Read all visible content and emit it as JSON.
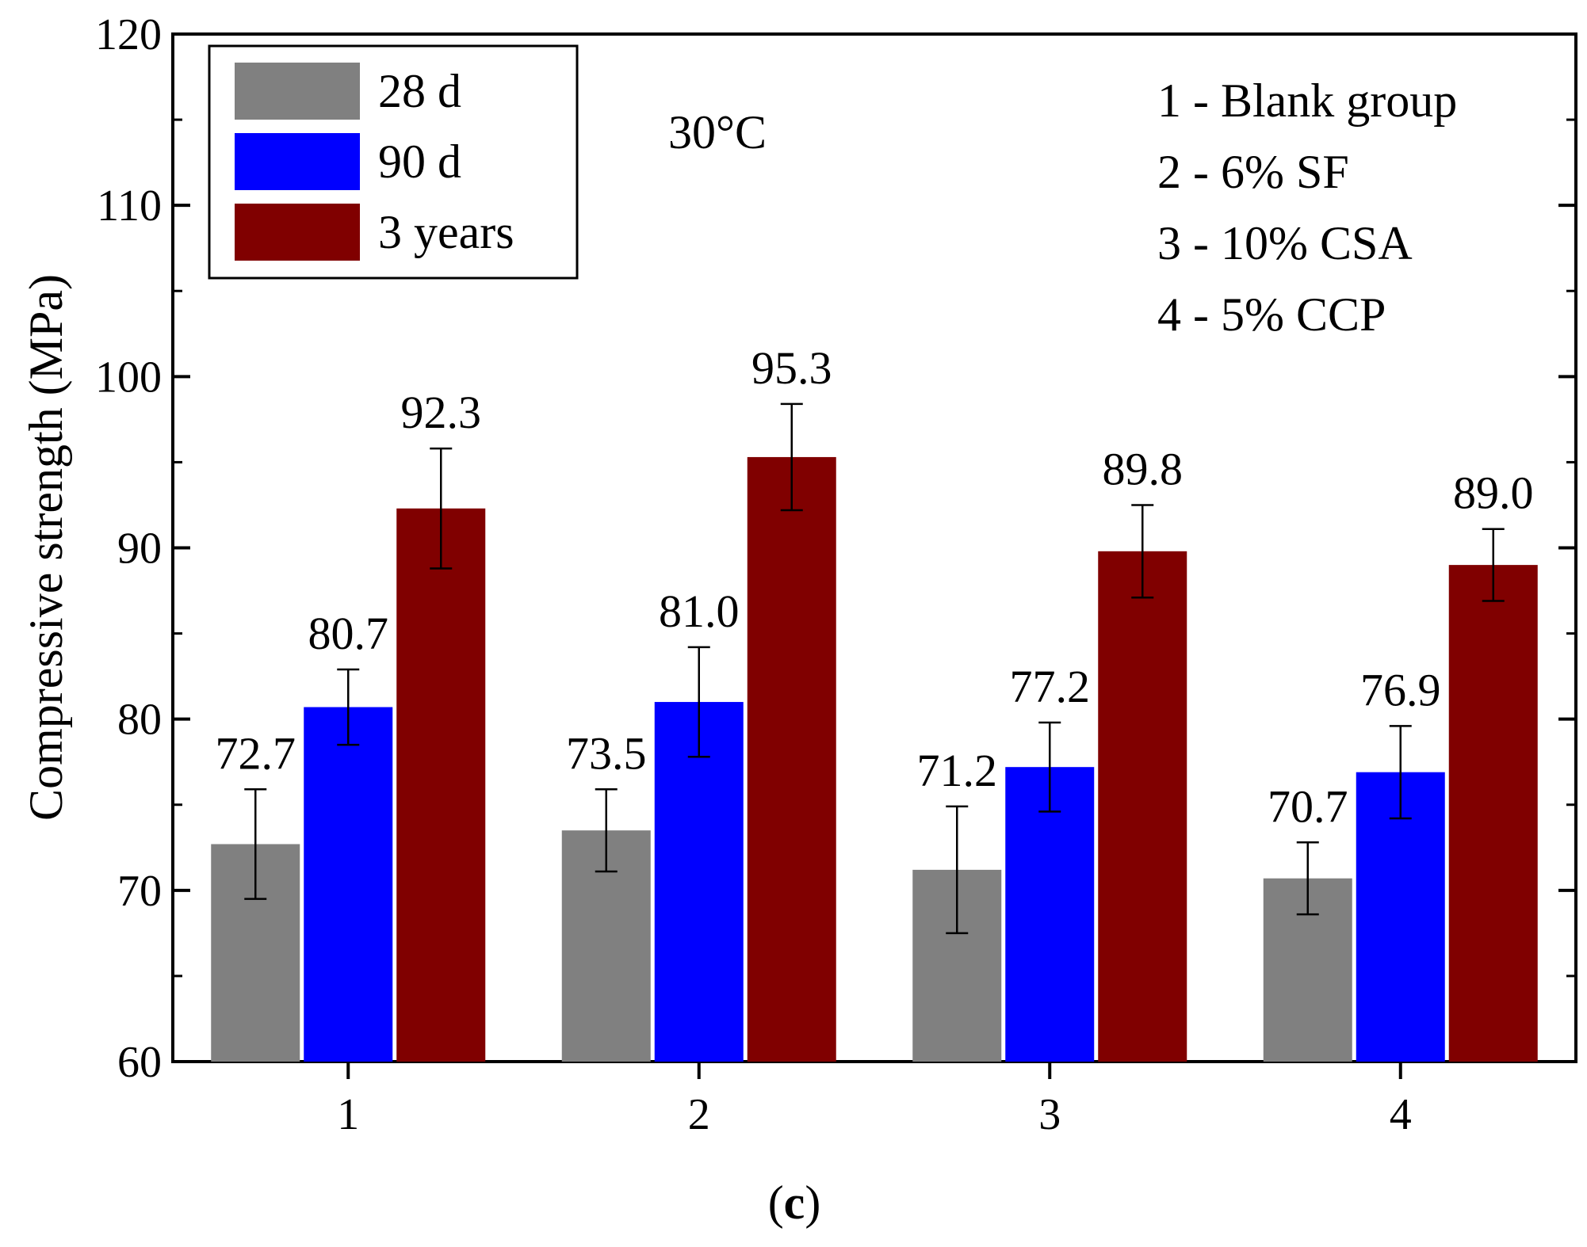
{
  "chart_data": {
    "type": "bar",
    "categories": [
      "1",
      "2",
      "3",
      "4"
    ],
    "series": [
      {
        "name": "28 d",
        "color": "#808080",
        "values": [
          72.7,
          73.5,
          71.2,
          70.7
        ],
        "errors": [
          3.2,
          2.4,
          3.7,
          2.1
        ]
      },
      {
        "name": "90 d",
        "color": "#0000ff",
        "values": [
          80.7,
          81.0,
          77.2,
          76.9
        ],
        "errors": [
          2.2,
          3.2,
          2.6,
          2.7
        ]
      },
      {
        "name": "3 years",
        "color": "#800000",
        "values": [
          92.3,
          95.3,
          89.8,
          89.0
        ],
        "errors": [
          3.5,
          3.1,
          2.7,
          2.1
        ]
      }
    ],
    "data_labels": [
      [
        "72.7",
        "73.5",
        "71.2",
        "70.7"
      ],
      [
        "80.7",
        "81.0",
        "77.2",
        "76.9"
      ],
      [
        "92.3",
        "95.3",
        "89.8",
        "89.0"
      ]
    ],
    "ylabel": "Compressive strength (MPa)",
    "xlabel": "",
    "ylim": [
      60,
      120
    ],
    "yticks": [
      60,
      70,
      80,
      90,
      100,
      110,
      120
    ],
    "grid": false,
    "legend_position": "top-left",
    "annotation": "30°C",
    "group_notes": [
      "1 - Blank group",
      "2 - 6% SF",
      "3 - 10% CSA",
      "4 - 5% CCP"
    ],
    "caption_open": "(",
    "caption_letter": "c",
    "caption_close": ")"
  }
}
